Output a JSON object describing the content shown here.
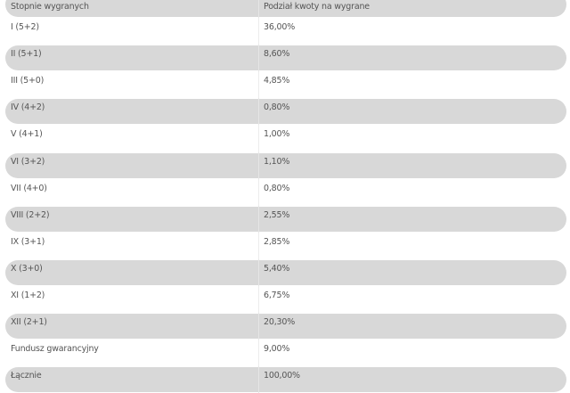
{
  "table": {
    "headers": [
      "Stopnie wygranych",
      "Podział kwoty na wygrane"
    ],
    "rows": [
      [
        "I (5+2)",
        "36,00%"
      ],
      [
        "II (5+1)",
        "8,60%"
      ],
      [
        "III (5+0)",
        "4,85%"
      ],
      [
        "IV (4+2)",
        "0,80%"
      ],
      [
        "V (4+1)",
        "1,00%"
      ],
      [
        "VI (3+2)",
        "1,10%"
      ],
      [
        "VII (4+0)",
        "0,80%"
      ],
      [
        "VIII (2+2)",
        "2,55%"
      ],
      [
        "IX (3+1)",
        "2,85%"
      ],
      [
        "X (3+0)",
        "5,40%"
      ],
      [
        "XI (1+2)",
        "6,75%"
      ],
      [
        "XII (2+1)",
        "20,30%"
      ],
      [
        "Fundusz gwarancyjny",
        "9,00%"
      ],
      [
        "Łącznie",
        "100,00%"
      ]
    ]
  },
  "colors": {
    "stripe": "#d8d8d8",
    "text": "#555555"
  }
}
